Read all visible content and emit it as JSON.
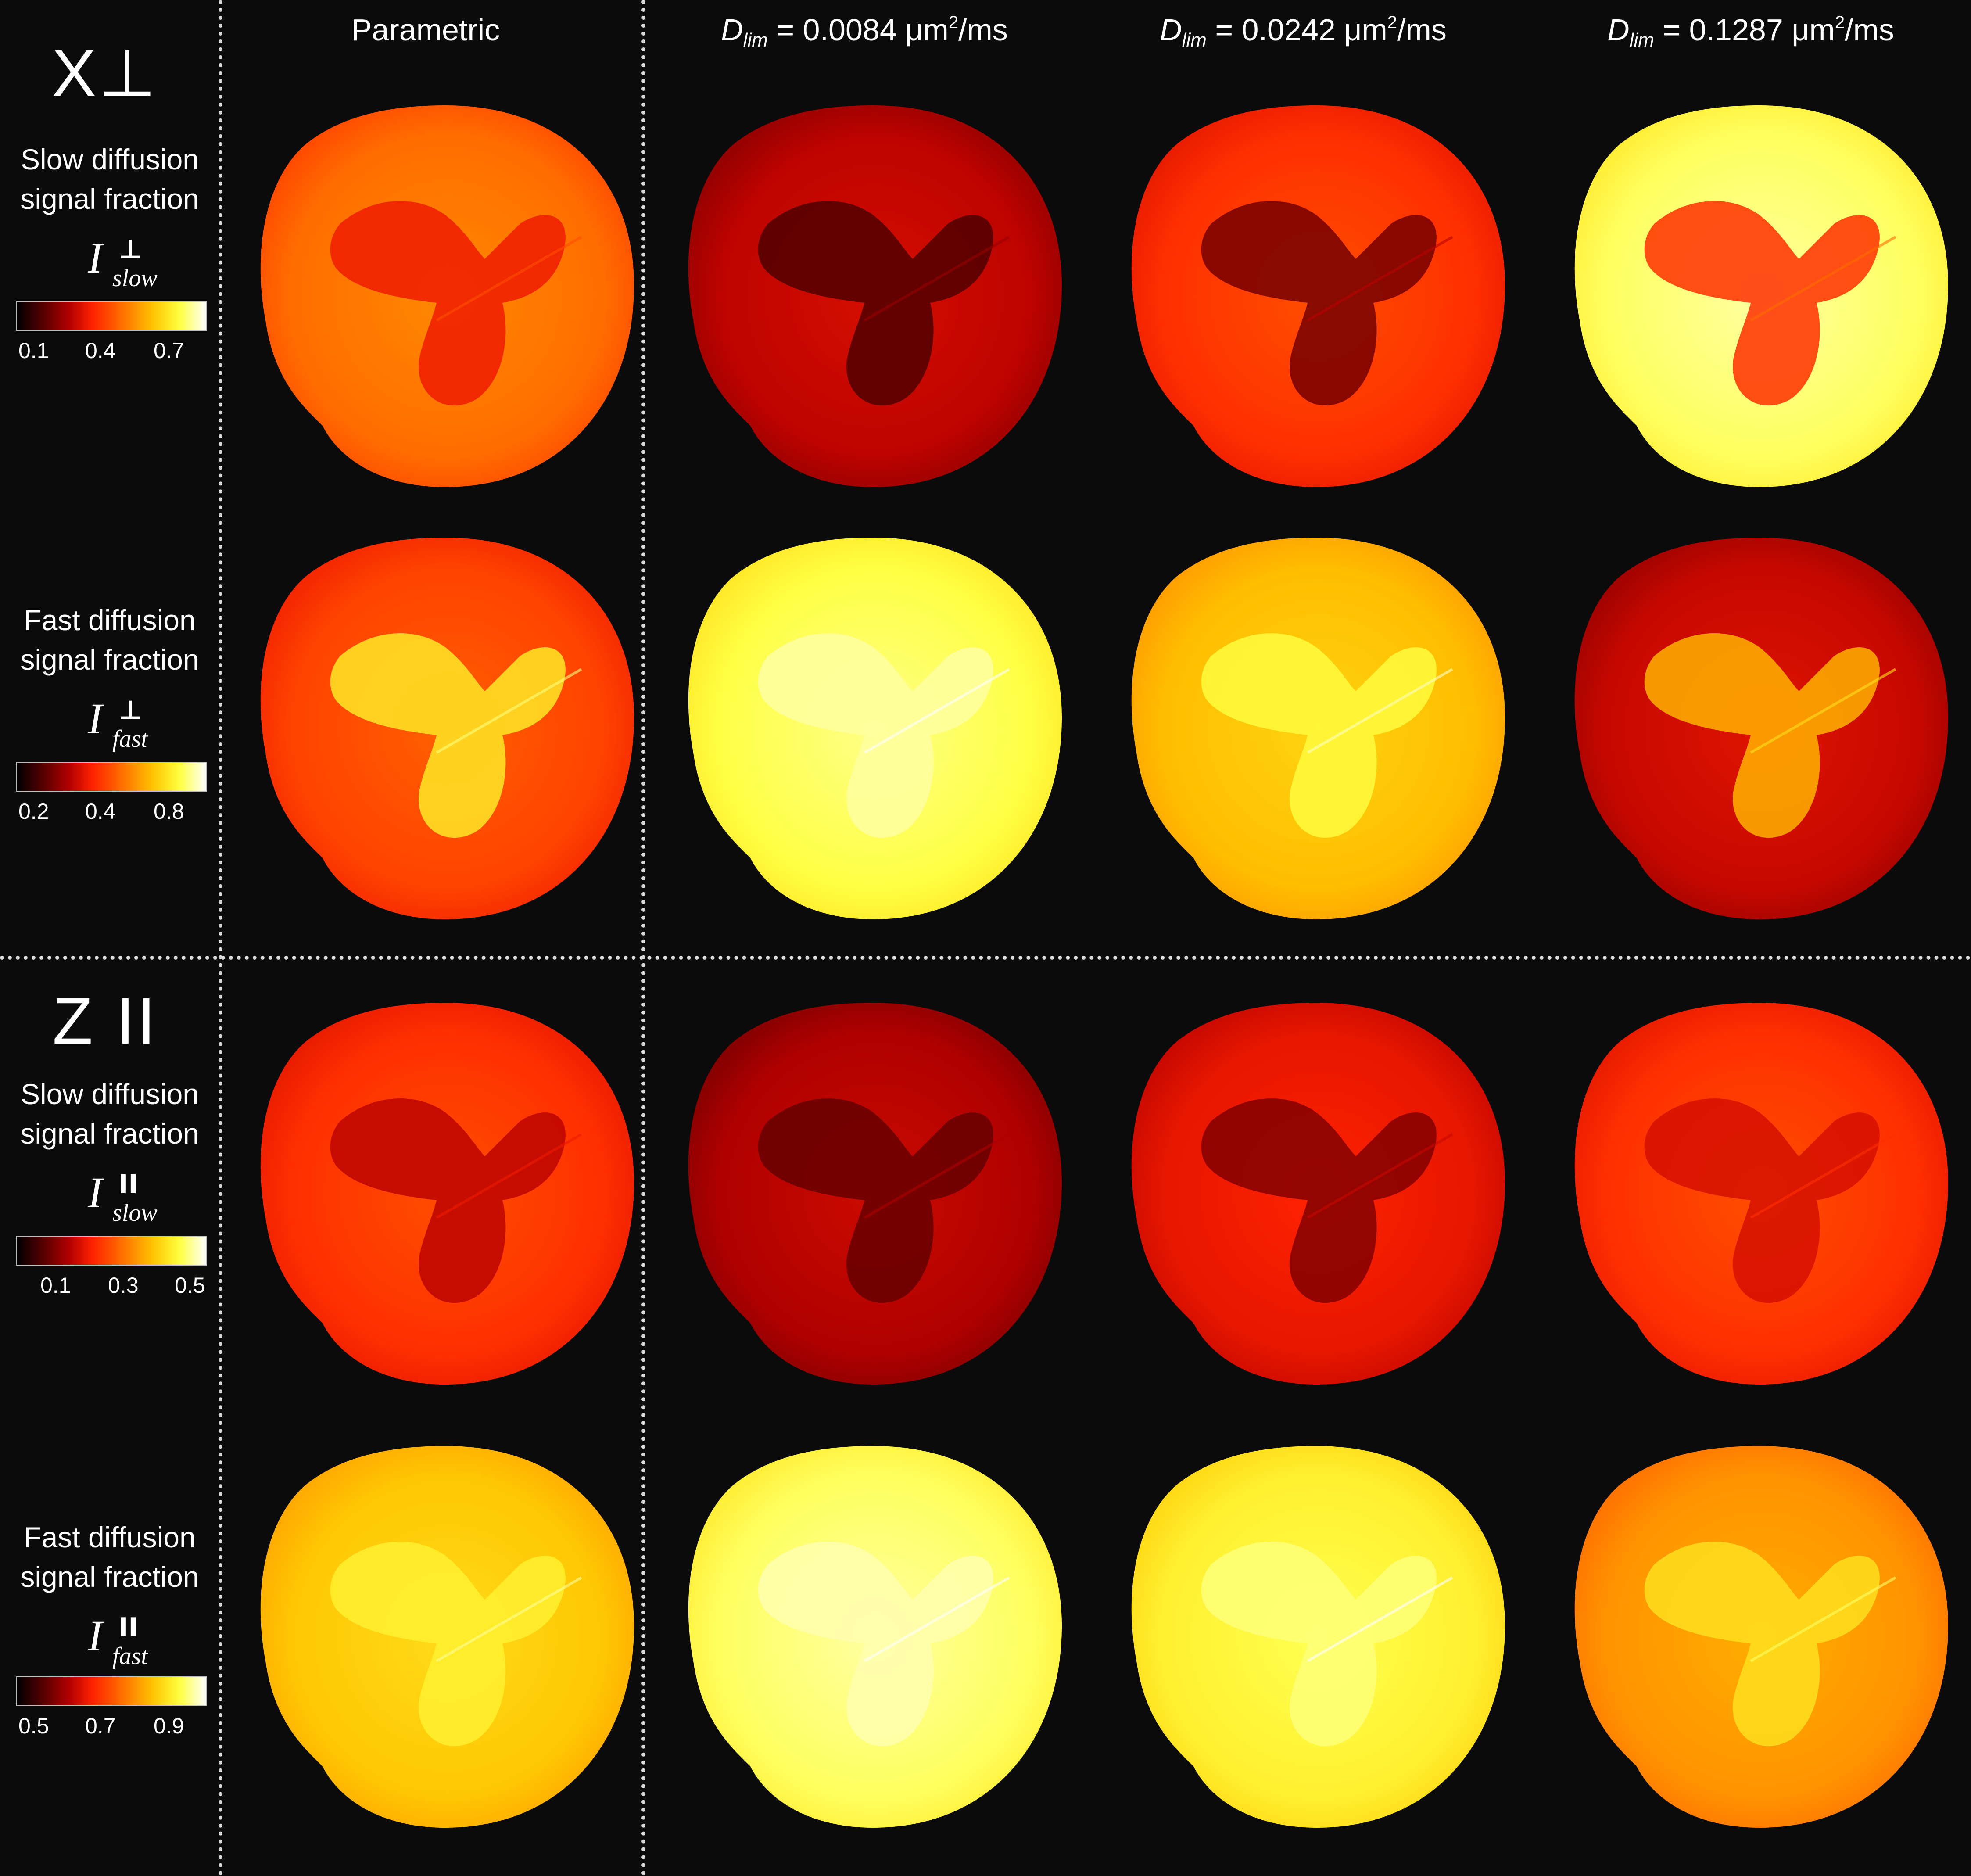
{
  "column_headers": [
    {
      "kind": "plain",
      "text": "Parametric"
    },
    {
      "kind": "dlim",
      "symbol": "D",
      "sub": "lim",
      "equals": " = ",
      "value": "0.0084",
      "unit_pre": " μm",
      "unit_sup": "2",
      "unit_post": "/ms"
    },
    {
      "kind": "dlim",
      "symbol": "D",
      "sub": "lim",
      "equals": " = ",
      "value": "0.0242",
      "unit_pre": " μm",
      "unit_sup": "2",
      "unit_post": "/ms"
    },
    {
      "kind": "dlim",
      "symbol": "D",
      "sub": "lim",
      "equals": " = ",
      "value": "0.1287",
      "unit_pre": " μm",
      "unit_sup": "2",
      "unit_post": "/ms"
    }
  ],
  "sections": [
    {
      "title": "X⊥"
    },
    {
      "title": "Z II"
    }
  ],
  "rows": [
    {
      "label_line1": "Slow diffusion",
      "label_line2": "signal fraction",
      "symbol": "I",
      "symbol_sup": "⊥",
      "symbol_sub": "slow",
      "colorbar_ticks": [
        "0.1",
        "0.4",
        "0.7"
      ]
    },
    {
      "label_line1": "Fast diffusion",
      "label_line2": "signal fraction",
      "symbol": "I",
      "symbol_sup": "⊥",
      "symbol_sub": "fast",
      "colorbar_ticks": [
        "0.2",
        "0.4",
        "0.8"
      ]
    },
    {
      "label_line1": "Slow diffusion",
      "label_line2": "signal fraction",
      "symbol": "I",
      "symbol_sup": "II",
      "symbol_sub": "slow",
      "colorbar_ticks": [
        "0.1",
        "0.3",
        "0.5"
      ]
    },
    {
      "label_line1": "Fast diffusion",
      "label_line2": "signal fraction",
      "symbol": "I",
      "symbol_sup": "II",
      "symbol_sub": "fast",
      "colorbar_ticks": [
        "0.5",
        "0.7",
        "0.9"
      ]
    }
  ],
  "map_fill_levels": [
    [
      0.55,
      0.3,
      0.45,
      0.88
    ],
    [
      0.48,
      0.86,
      0.7,
      0.32
    ],
    [
      0.45,
      0.28,
      0.38,
      0.45
    ],
    [
      0.72,
      0.88,
      0.82,
      0.62
    ]
  ],
  "map_insert_levels": [
    [
      0.4,
      0.15,
      0.2,
      0.45
    ],
    [
      0.8,
      0.93,
      0.85,
      0.68
    ],
    [
      0.3,
      0.18,
      0.22,
      0.35
    ],
    [
      0.82,
      0.94,
      0.9,
      0.78
    ]
  ],
  "colormap": [
    "#000000",
    "#4a0000",
    "#b40000",
    "#ff2200",
    "#ff7a00",
    "#ffc400",
    "#ffff40",
    "#ffffff"
  ]
}
